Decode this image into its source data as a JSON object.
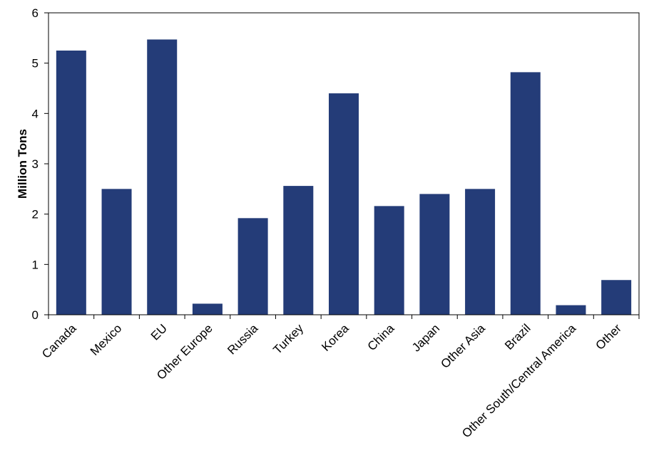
{
  "chart_data": {
    "type": "bar",
    "title": "",
    "xlabel": "",
    "ylabel": "Million Tons",
    "ylim": [
      0,
      6
    ],
    "yticks": [
      0,
      1,
      2,
      3,
      4,
      5,
      6
    ],
    "grid": false,
    "legend": "none",
    "bar_color": "#243C78",
    "categories": [
      "Canada",
      "Mexico",
      "EU",
      "Other Europe",
      "Russia",
      "Turkey",
      "Korea",
      "China",
      "Japan",
      "Other Asia",
      "Brazil",
      "Other South/Central America",
      "Other"
    ],
    "values": [
      5.25,
      2.5,
      5.47,
      0.22,
      1.92,
      2.56,
      4.4,
      2.16,
      2.4,
      2.5,
      4.82,
      0.19,
      0.69
    ]
  }
}
